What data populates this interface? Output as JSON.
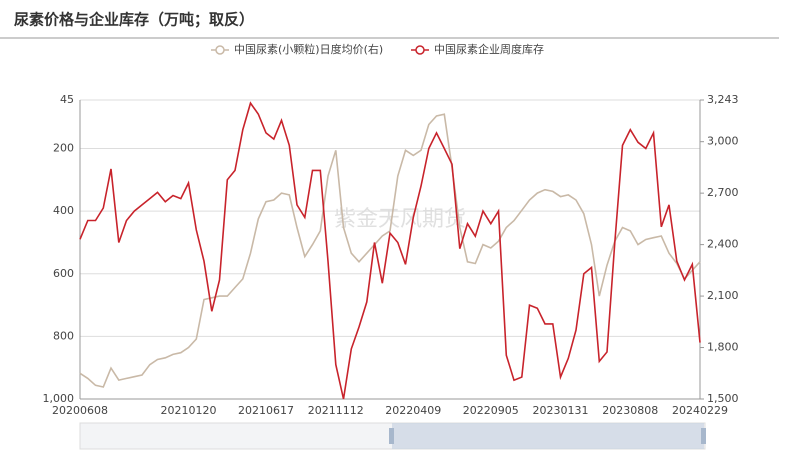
{
  "chart_data": {
    "type": "line",
    "title": "尿素价格与企业库存（万吨；取反）",
    "watermark": "紫金天风期货",
    "categories": [
      "20200608",
      null,
      null,
      null,
      null,
      null,
      null,
      null,
      null,
      null,
      null,
      null,
      null,
      null,
      "20210120",
      null,
      null,
      null,
      null,
      null,
      null,
      null,
      null,
      null,
      "20210617",
      null,
      null,
      null,
      null,
      null,
      null,
      null,
      null,
      "20211112",
      null,
      null,
      null,
      null,
      null,
      null,
      null,
      null,
      null,
      "20220409",
      null,
      null,
      null,
      null,
      null,
      null,
      null,
      null,
      null,
      "20220905",
      null,
      null,
      null,
      null,
      null,
      null,
      null,
      null,
      "20230131",
      null,
      null,
      null,
      null,
      null,
      null,
      null,
      null,
      "20230808",
      null,
      null,
      null,
      null,
      null,
      null,
      null,
      null,
      "20240229"
    ],
    "series": [
      {
        "name": "中国尿素(小颗粒)日度均价(右)",
        "color": "#c9b9a7",
        "axis": "y2",
        "values": [
          1650,
          1620,
          1580,
          1570,
          1680,
          1610,
          1620,
          1630,
          1640,
          1700,
          1730,
          1740,
          1760,
          1770,
          1800,
          1850,
          2080,
          2090,
          2100,
          2100,
          2150,
          2200,
          2350,
          2550,
          2650,
          2660,
          2700,
          2690,
          2500,
          2330,
          2400,
          2480,
          2800,
          2950,
          2500,
          2350,
          2300,
          2350,
          2400,
          2450,
          2480,
          2800,
          2950,
          2920,
          2950,
          3100,
          3150,
          3160,
          2850,
          2500,
          2300,
          2290,
          2400,
          2380,
          2420,
          2500,
          2540,
          2600,
          2660,
          2700,
          2720,
          2710,
          2680,
          2690,
          2660,
          2580,
          2400,
          2100,
          2280,
          2420,
          2500,
          2480,
          2400,
          2430,
          2440,
          2450,
          2350,
          2290,
          2200,
          2250,
          2300
        ]
      },
      {
        "name": "中国尿素企业周度库存",
        "color": "#c8232b",
        "values": [
          490,
          430,
          430,
          390,
          265,
          500,
          430,
          400,
          380,
          360,
          340,
          370,
          350,
          360,
          310,
          460,
          560,
          720,
          620,
          300,
          270,
          140,
          55,
          90,
          150,
          170,
          110,
          190,
          380,
          420,
          270,
          270,
          560,
          890,
          1000,
          840,
          770,
          690,
          500,
          630,
          470,
          500,
          570,
          420,
          320,
          200,
          150,
          200,
          250,
          520,
          440,
          480,
          400,
          440,
          400,
          860,
          940,
          930,
          700,
          710,
          760,
          760,
          930,
          870,
          780,
          600,
          580,
          880,
          850,
          500,
          190,
          140,
          180,
          200,
          150,
          450,
          380,
          560,
          620,
          570,
          820
        ]
      }
    ],
    "ylim": [
      45,
      1000
    ],
    "y_inverse": true,
    "yticks": [
      45,
      200,
      400,
      600,
      800,
      {
        "value": 1000,
        "label": "1,000"
      }
    ],
    "y2lim": [
      1500,
      3243
    ],
    "y2ticks": [
      {
        "value": 1500,
        "label": "1,500"
      },
      {
        "value": 1800,
        "label": "1,800"
      },
      {
        "value": 2100,
        "label": "2,100"
      },
      {
        "value": 2400,
        "label": "2,400"
      },
      {
        "value": 2700,
        "label": "2,700"
      },
      {
        "value": 3000,
        "label": "3,000"
      },
      {
        "value": 3243,
        "label": "3,243"
      }
    ],
    "grid": true
  }
}
